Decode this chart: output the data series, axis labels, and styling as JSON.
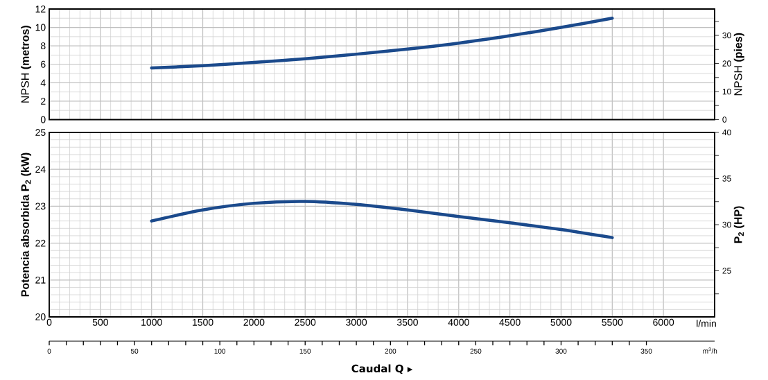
{
  "chart_data": [
    {
      "type": "line",
      "ylabel": "NPSH  **(metros)**",
      "y2label": "NPSH  **(pies)**",
      "x": [
        1000,
        1500,
        2000,
        2500,
        3000,
        3500,
        4000,
        4500,
        5000,
        5500
      ],
      "series": [
        {
          "color": "#1b4a8c",
          "values": [
            5.6,
            5.85,
            6.2,
            6.6,
            7.1,
            7.65,
            8.3,
            9.1,
            10.0,
            11.0
          ]
        }
      ],
      "xlim": [
        0,
        6500
      ],
      "xticks": [
        {
          "value": 0,
          "label": null
        },
        {
          "value": 500,
          "label": null
        },
        {
          "value": 1000,
          "label": null
        },
        {
          "value": 1500,
          "label": null
        },
        {
          "value": 2000,
          "label": null
        },
        {
          "value": 2500,
          "label": null
        },
        {
          "value": 3000,
          "label": null
        },
        {
          "value": 3500,
          "label": null
        },
        {
          "value": 4000,
          "label": null
        },
        {
          "value": 4500,
          "label": null
        },
        {
          "value": 5000,
          "label": null
        },
        {
          "value": 5500,
          "label": null
        },
        {
          "value": 6000,
          "label": null
        }
      ],
      "ylim": [
        0,
        12
      ],
      "yticks": [
        0,
        2,
        4,
        6,
        8,
        10,
        12
      ],
      "y2lim": [
        0,
        39.4
      ],
      "y2ticks": [
        0,
        {
          "value": 5,
          "label": null
        },
        10,
        {
          "value": 15,
          "label": null
        },
        20,
        {
          "value": 25,
          "label": null
        },
        30,
        {
          "value": 35,
          "label": null
        }
      ],
      "grid": true,
      "tick_labels": "y"
    },
    {
      "type": "line",
      "xlabel": "Caudal Q ▸",
      "ylabel": "Potencia absorbida P$_{2}$ (kW)",
      "y2label": "P$_{2}$ (HP)",
      "annotations": [
        "l/min"
      ],
      "x": [
        1000,
        1500,
        2000,
        2500,
        3000,
        3500,
        4000,
        4500,
        5000,
        5500
      ],
      "series": [
        {
          "color": "#1b4a8c",
          "values": [
            22.6,
            22.9,
            23.08,
            23.13,
            23.05,
            22.9,
            22.72,
            22.55,
            22.37,
            22.15
          ]
        }
      ],
      "xlim": [
        0,
        6500
      ],
      "xticks": [
        0,
        500,
        1000,
        1500,
        2000,
        2500,
        3000,
        3500,
        4000,
        4500,
        5000,
        5500,
        6000
      ],
      "ylim": [
        20,
        25
      ],
      "yticks": [
        20,
        21,
        22,
        23,
        24,
        25
      ],
      "y2lim": [
        20,
        40
      ],
      "y2ticks": [
        {
          "value": 22.5,
          "label": null
        },
        25,
        {
          "value": 27.5,
          "label": null
        },
        30,
        {
          "value": 32.5,
          "label": null
        },
        35,
        {
          "value": 37.5,
          "label": null
        },
        40
      ],
      "x2lim": [
        0,
        390
      ],
      "x2label": "m$^{3}$/h",
      "x2ticks": [
        0,
        50,
        100,
        150,
        200,
        250,
        300,
        350
      ],
      "grid": true
    }
  ]
}
